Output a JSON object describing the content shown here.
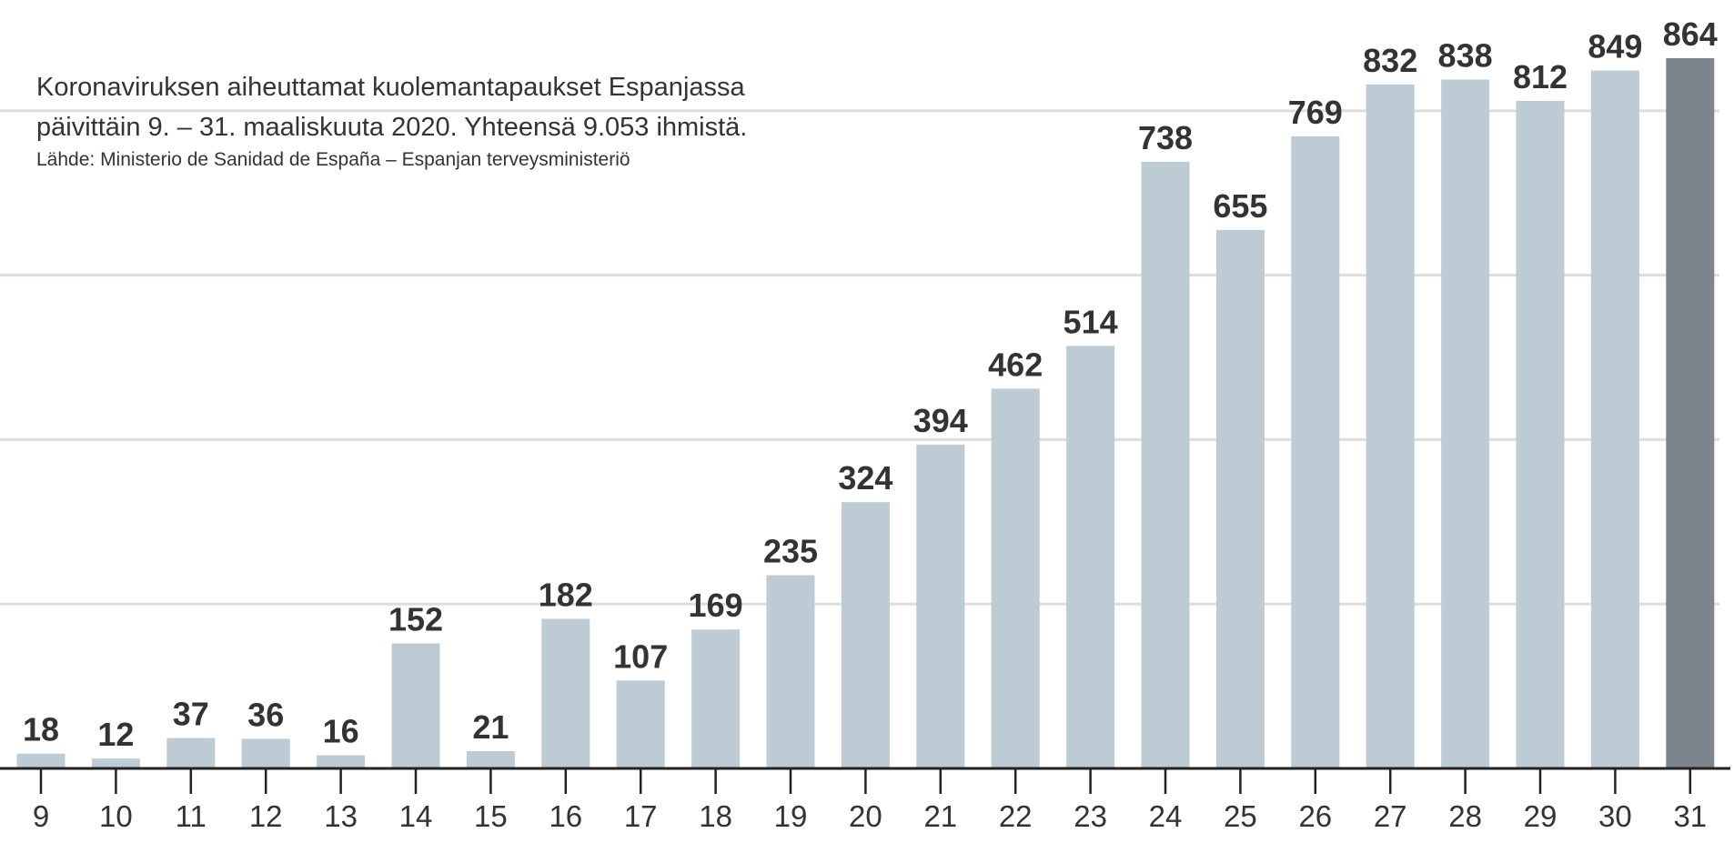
{
  "chart_data": {
    "type": "bar",
    "title_line1": "Koronaviruksen aiheuttamat kuolemantapaukset Espanjassa",
    "title_line2": "päivittäin 9. – 31. maaliskuuta 2020. Yhteensä 9.053 ihmistä.",
    "source": "Lähde: Ministerio de Sanidad de España – Espanjan terveysministeriö",
    "categories": [
      "9",
      "10",
      "11",
      "12",
      "13",
      "14",
      "15",
      "16",
      "17",
      "18",
      "19",
      "20",
      "21",
      "22",
      "23",
      "24",
      "25",
      "26",
      "27",
      "28",
      "29",
      "30",
      "31"
    ],
    "values": [
      18,
      12,
      37,
      36,
      16,
      152,
      21,
      182,
      107,
      169,
      235,
      324,
      394,
      462,
      514,
      738,
      655,
      769,
      832,
      838,
      812,
      849,
      864
    ],
    "ylim": [
      0,
      864
    ],
    "gridlines": [
      200,
      400,
      600,
      800
    ],
    "colors": {
      "bar": "#bdcbd4",
      "highlight": "#7c848c",
      "label": "#333333",
      "grid": "#dddddd"
    },
    "highlight_index": 22,
    "xlabel": "",
    "ylabel": ""
  }
}
